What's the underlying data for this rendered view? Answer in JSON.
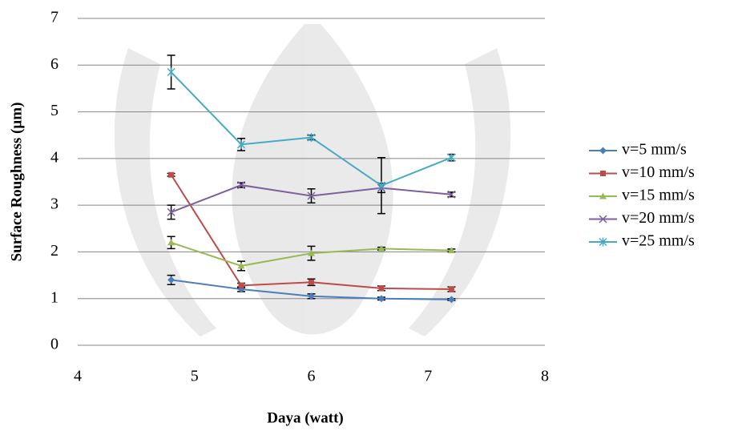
{
  "chart_data": {
    "type": "line",
    "x_label": "Daya (watt)",
    "y_label": "Surface Roughness (µm)",
    "x": [
      4.8,
      5.4,
      6,
      6.6,
      7.2
    ],
    "xlim": [
      4,
      8
    ],
    "xticks": [
      4,
      5,
      6,
      7,
      8
    ],
    "ylim": [
      0,
      7
    ],
    "yticks": [
      0,
      1,
      2,
      3,
      4,
      5,
      6,
      7
    ],
    "grid": true,
    "legend": "right",
    "series": [
      {
        "name": "v=5 mm/s",
        "color": "#4a7ebb",
        "marker": "diamond",
        "values": [
          1.4,
          1.2,
          1.05,
          1.0,
          0.98
        ],
        "errors": [
          0.1,
          0.05,
          0.05,
          0.03,
          0.02
        ]
      },
      {
        "name": "v=10 mm/s",
        "color": "#be4b48",
        "marker": "square",
        "values": [
          3.65,
          1.28,
          1.35,
          1.22,
          1.2
        ],
        "errors": [
          0.03,
          0.05,
          0.07,
          0.05,
          0.05
        ]
      },
      {
        "name": "v=15 mm/s",
        "color": "#98b954",
        "marker": "triangle",
        "values": [
          2.2,
          1.7,
          1.97,
          2.07,
          2.03
        ],
        "errors": [
          0.13,
          0.1,
          0.15,
          0.03,
          0.03
        ]
      },
      {
        "name": "v=20 mm/s",
        "color": "#7d60a0",
        "marker": "x",
        "values": [
          2.85,
          3.43,
          3.2,
          3.37,
          3.23
        ],
        "errors": [
          0.15,
          0.05,
          0.15,
          0.1,
          0.05
        ]
      },
      {
        "name": "v=25 mm/s",
        "color": "#46aac5",
        "marker": "star",
        "values": [
          5.85,
          4.3,
          4.45,
          3.42,
          4.02
        ],
        "errors": [
          0.36,
          0.13,
          0.05,
          0.6,
          0.07
        ]
      }
    ]
  }
}
